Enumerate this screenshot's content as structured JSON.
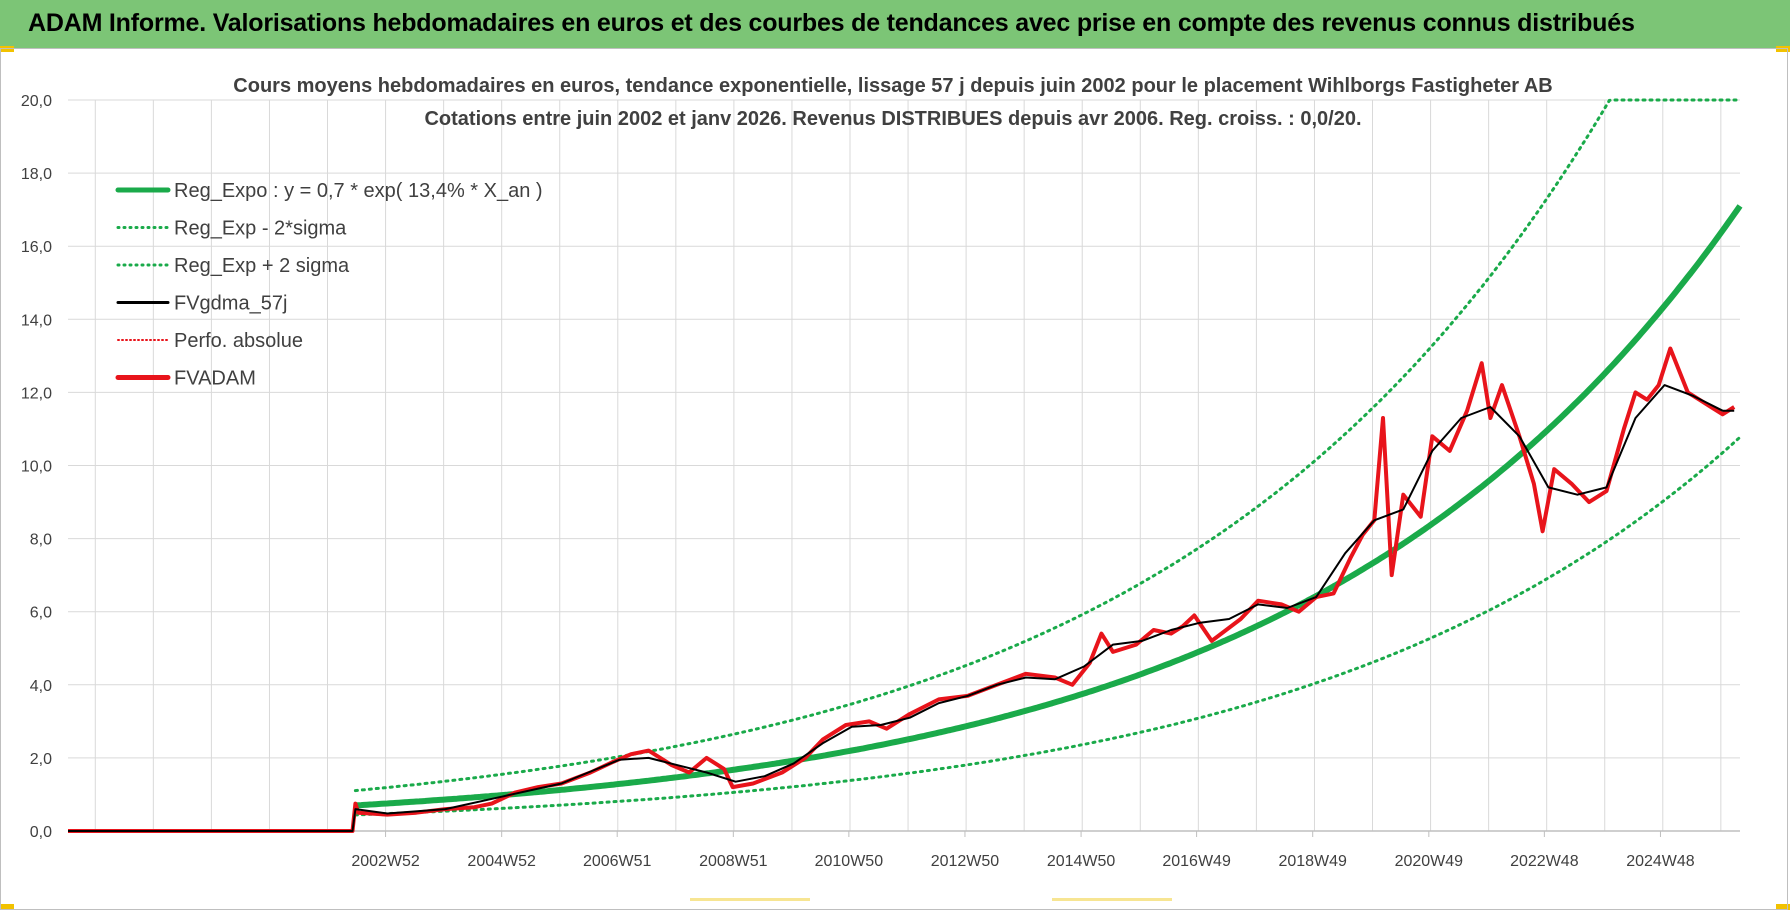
{
  "banner": {
    "title": "ADAM Informe. Valorisations hebdomadaires en euros et des courbes de tendances avec prise en compte des revenus connus distribués"
  },
  "colors": {
    "banner_bg": "#7cc576",
    "trend": "#1aaa4a",
    "adam": "#e8141b",
    "gdma": "#000000",
    "perfo": "#e8141b",
    "grid": "#d9d9d9"
  },
  "chart_data": {
    "type": "line",
    "title": "Cours moyens hebdomadaires en euros, tendance exponentielle, lissage 57 j depuis juin 2002 pour le placement Wihlborgs Fastigheter AB",
    "subtitle": "Cotations entre juin 2002 et janv 2026.  Revenus DISTRIBUES depuis avr 2006. Reg. croiss. : 0,0/20.",
    "xlabel": "",
    "ylabel": "",
    "ylim": [
      0,
      20
    ],
    "xlim": [
      1997.5,
      2026.3
    ],
    "y_ticks": [
      "0,0",
      "2,0",
      "4,0",
      "6,0",
      "8,0",
      "10,0",
      "12,0",
      "14,0",
      "16,0",
      "18,0",
      "20,0"
    ],
    "x_tick_labels": [
      {
        "year": 2002.97,
        "label": "2002W52"
      },
      {
        "year": 2004.97,
        "label": "2004W52"
      },
      {
        "year": 2006.96,
        "label": "2006W51"
      },
      {
        "year": 2008.96,
        "label": "2008W51"
      },
      {
        "year": 2010.95,
        "label": "2010W50"
      },
      {
        "year": 2012.95,
        "label": "2012W50"
      },
      {
        "year": 2014.95,
        "label": "2014W50"
      },
      {
        "year": 2016.94,
        "label": "2016W49"
      },
      {
        "year": 2018.94,
        "label": "2018W49"
      },
      {
        "year": 2020.94,
        "label": "2020W49"
      },
      {
        "year": 2022.93,
        "label": "2022W48"
      },
      {
        "year": 2024.93,
        "label": "2024W48"
      }
    ],
    "legend": [
      {
        "label": "Reg_Expo : y = 0,7 * exp( 13,4% *  X_an )",
        "style": "solid-thick",
        "color": "#1aaa4a"
      },
      {
        "label": "Reg_Exp - 2*sigma",
        "style": "dotted",
        "color": "#1aaa4a"
      },
      {
        "label": "Reg_Exp + 2 sigma",
        "style": "dotted",
        "color": "#1aaa4a"
      },
      {
        "label": "FVgdma_57j",
        "style": "solid",
        "color": "#000000"
      },
      {
        "label": "Perfo. absolue",
        "style": "dotted-thin",
        "color": "#e8141b"
      },
      {
        "label": "FVADAM",
        "style": "solid-thick",
        "color": "#e8141b"
      }
    ],
    "regression": {
      "a": 0.7,
      "rate": 0.134,
      "start_year": 2002.45,
      "lower_factor": 0.63,
      "upper_factor": 1.58,
      "cap": 20
    },
    "series": [
      {
        "name": "FVADAM",
        "x": [
          1997.5,
          2002.4,
          2002.45,
          2002.5,
          2003.0,
          2003.5,
          2004.0,
          2004.5,
          2004.8,
          2005.2,
          2005.6,
          2006.0,
          2006.5,
          2006.9,
          2007.2,
          2007.5,
          2007.9,
          2008.2,
          2008.5,
          2008.8,
          2008.95,
          2009.3,
          2009.8,
          2010.2,
          2010.5,
          2010.9,
          2011.3,
          2011.6,
          2012.0,
          2012.5,
          2013.0,
          2013.5,
          2014.0,
          2014.5,
          2014.8,
          2015.1,
          2015.3,
          2015.5,
          2015.9,
          2016.2,
          2016.5,
          2016.7,
          2016.9,
          2017.2,
          2017.7,
          2018.0,
          2018.4,
          2018.7,
          2019.0,
          2019.3,
          2019.6,
          2019.8,
          2020.0,
          2020.15,
          2020.3,
          2020.5,
          2020.8,
          2021.0,
          2021.3,
          2021.6,
          2021.85,
          2022.0,
          2022.2,
          2022.5,
          2022.75,
          2022.9,
          2023.1,
          2023.4,
          2023.7,
          2024.0,
          2024.3,
          2024.5,
          2024.7,
          2024.9,
          2025.1,
          2025.4,
          2025.6,
          2025.8,
          2026.0,
          2026.2
        ],
        "y": [
          0.0,
          0.0,
          0.75,
          0.5,
          0.45,
          0.5,
          0.6,
          0.65,
          0.75,
          1.05,
          1.2,
          1.3,
          1.6,
          1.9,
          2.1,
          2.2,
          1.8,
          1.6,
          2.0,
          1.7,
          1.2,
          1.3,
          1.6,
          2.0,
          2.5,
          2.9,
          3.0,
          2.8,
          3.2,
          3.6,
          3.7,
          4.0,
          4.3,
          4.2,
          4.0,
          4.6,
          5.4,
          4.9,
          5.1,
          5.5,
          5.4,
          5.6,
          5.9,
          5.2,
          5.8,
          6.3,
          6.2,
          6.0,
          6.4,
          6.5,
          7.5,
          8.1,
          8.5,
          11.3,
          7.0,
          9.2,
          8.6,
          10.8,
          10.4,
          11.5,
          12.8,
          11.3,
          12.2,
          10.8,
          9.5,
          8.2,
          9.9,
          9.5,
          9.0,
          9.3,
          11.0,
          12.0,
          11.8,
          12.2,
          13.2,
          12.0,
          11.8,
          11.6,
          11.4,
          11.6
        ]
      },
      {
        "name": "FVgdma_57j",
        "x": [
          1997.5,
          2002.4,
          2002.45,
          2003.0,
          2004.0,
          2005.0,
          2006.0,
          2007.0,
          2007.5,
          2008.0,
          2008.5,
          2009.0,
          2009.5,
          2010.0,
          2010.5,
          2011.0,
          2011.5,
          2012.0,
          2012.5,
          2013.0,
          2013.5,
          2014.0,
          2014.5,
          2015.0,
          2015.5,
          2016.0,
          2016.5,
          2017.0,
          2017.5,
          2018.0,
          2018.5,
          2019.0,
          2019.5,
          2020.0,
          2020.5,
          2021.0,
          2021.5,
          2022.0,
          2022.5,
          2023.0,
          2023.5,
          2024.0,
          2024.5,
          2025.0,
          2025.5,
          2026.0,
          2026.2
        ],
        "y": [
          0.0,
          0.0,
          0.6,
          0.48,
          0.6,
          0.95,
          1.3,
          1.95,
          2.0,
          1.8,
          1.6,
          1.35,
          1.5,
          1.85,
          2.4,
          2.85,
          2.9,
          3.1,
          3.5,
          3.7,
          4.0,
          4.2,
          4.15,
          4.5,
          5.1,
          5.2,
          5.5,
          5.7,
          5.8,
          6.2,
          6.1,
          6.4,
          7.6,
          8.5,
          8.8,
          10.4,
          11.3,
          11.6,
          10.8,
          9.4,
          9.2,
          9.4,
          11.3,
          12.2,
          11.9,
          11.5,
          11.5
        ]
      }
    ]
  }
}
